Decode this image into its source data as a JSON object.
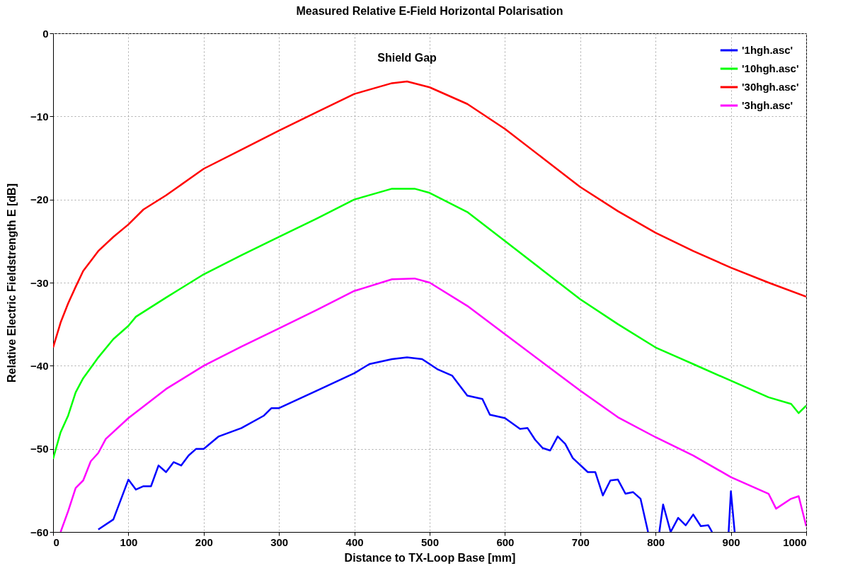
{
  "chart_data": {
    "type": "line",
    "title": "Measured Relative E-Field Horizontal Polarisation",
    "xlabel": "Distance to TX-Loop Base [mm]",
    "ylabel": "Relative Electric Fieldstrength E [dB]",
    "annotations": [
      "Shield Gap"
    ],
    "xlim": [
      0,
      1000
    ],
    "xticks": [
      0,
      100,
      200,
      300,
      400,
      500,
      600,
      700,
      800,
      900,
      1000
    ],
    "ylim": [
      -60,
      0
    ],
    "yticks": [
      -60,
      -50,
      -40,
      -30,
      -20,
      -10,
      0
    ],
    "grid": true,
    "legend": "top right",
    "line_style": "solid",
    "marker": "none",
    "series": [
      {
        "name": "'1hgh.asc'",
        "color": "#0000ff",
        "x": [
          60,
          80,
          100,
          110,
          120,
          130,
          140,
          150,
          160,
          170,
          180,
          190,
          200,
          220,
          250,
          280,
          290,
          300,
          350,
          400,
          420,
          450,
          470,
          490,
          510,
          530,
          550,
          570,
          580,
          600,
          620,
          630,
          640,
          650,
          660,
          670,
          680,
          690,
          710,
          720,
          730,
          740,
          750,
          760,
          770,
          780,
          790,
          800,
          805,
          810,
          820,
          830,
          840,
          850,
          860,
          870,
          875,
          885,
          897,
          900,
          905
        ],
        "values": [
          -59.7,
          -58.5,
          -53.7,
          -54.9,
          -54.5,
          -54.5,
          -52,
          -52.8,
          -51.6,
          -52,
          -50.8,
          -50,
          -50,
          -48.5,
          -47.5,
          -46,
          -45.1,
          -45.1,
          -43,
          -40.9,
          -39.8,
          -39.2,
          -39,
          -39.2,
          -40.4,
          -41.2,
          -43.6,
          -44,
          -45.9,
          -46.3,
          -47.6,
          -47.5,
          -48.9,
          -49.9,
          -50.2,
          -48.5,
          -49.4,
          -51.1,
          -52.8,
          -52.8,
          -55.6,
          -53.8,
          -53.7,
          -55.4,
          -55.2,
          -56,
          -60,
          null,
          -60,
          -56.7,
          -60,
          -58.3,
          -59.2,
          -57.9,
          -59.3,
          -59.2,
          -60,
          null,
          -60,
          -55.1,
          -60
        ]
      },
      {
        "name": "'10hgh.asc'",
        "color": "#00ff00",
        "x": [
          0,
          10,
          20,
          30,
          40,
          60,
          80,
          100,
          110,
          150,
          200,
          250,
          300,
          350,
          400,
          450,
          480,
          500,
          550,
          600,
          650,
          700,
          750,
          800,
          850,
          900,
          950,
          980,
          990,
          1000
        ],
        "values": [
          -51.2,
          -48,
          -46,
          -43.2,
          -41.5,
          -39,
          -36.8,
          -35.2,
          -34.1,
          -31.8,
          -29,
          -26.7,
          -24.5,
          -22.3,
          -20,
          -18.7,
          -18.7,
          -19.2,
          -21.5,
          -25,
          -28.5,
          -32,
          -35,
          -37.8,
          -39.8,
          -41.8,
          -43.8,
          -44.6,
          -45.7,
          -44.8
        ]
      },
      {
        "name": "'30hgh.asc'",
        "color": "#ff0000",
        "x": [
          0,
          10,
          20,
          30,
          40,
          60,
          80,
          100,
          120,
          150,
          200,
          250,
          300,
          350,
          400,
          450,
          470,
          500,
          550,
          600,
          650,
          700,
          750,
          800,
          850,
          900,
          950,
          1000
        ],
        "values": [
          -37.8,
          -34.8,
          -32.5,
          -30.5,
          -28.6,
          -26.2,
          -24.5,
          -23,
          -21.2,
          -19.5,
          -16.3,
          -14,
          -11.7,
          -9.5,
          -7.3,
          -6,
          -5.8,
          -6.5,
          -8.5,
          -11.5,
          -15,
          -18.5,
          -21.4,
          -24,
          -26.2,
          -28.2,
          -30,
          -31.7
        ]
      },
      {
        "name": "'3hgh.asc'",
        "color": "#ff00ff",
        "x": [
          10,
          20,
          30,
          40,
          50,
          60,
          70,
          100,
          150,
          200,
          250,
          300,
          350,
          400,
          450,
          480,
          500,
          550,
          600,
          650,
          700,
          750,
          800,
          850,
          900,
          950,
          960,
          980,
          990,
          1000
        ],
        "values": [
          -60,
          -57.5,
          -54.7,
          -53.8,
          -51.5,
          -50.5,
          -48.8,
          -46.3,
          -42.8,
          -40,
          -37.7,
          -35.5,
          -33.3,
          -31,
          -29.6,
          -29.5,
          -30,
          -32.8,
          -36.2,
          -39.6,
          -43,
          -46.2,
          -48.6,
          -50.8,
          -53.4,
          -55.4,
          -57.2,
          -56,
          -55.7,
          -59.3
        ]
      }
    ]
  }
}
